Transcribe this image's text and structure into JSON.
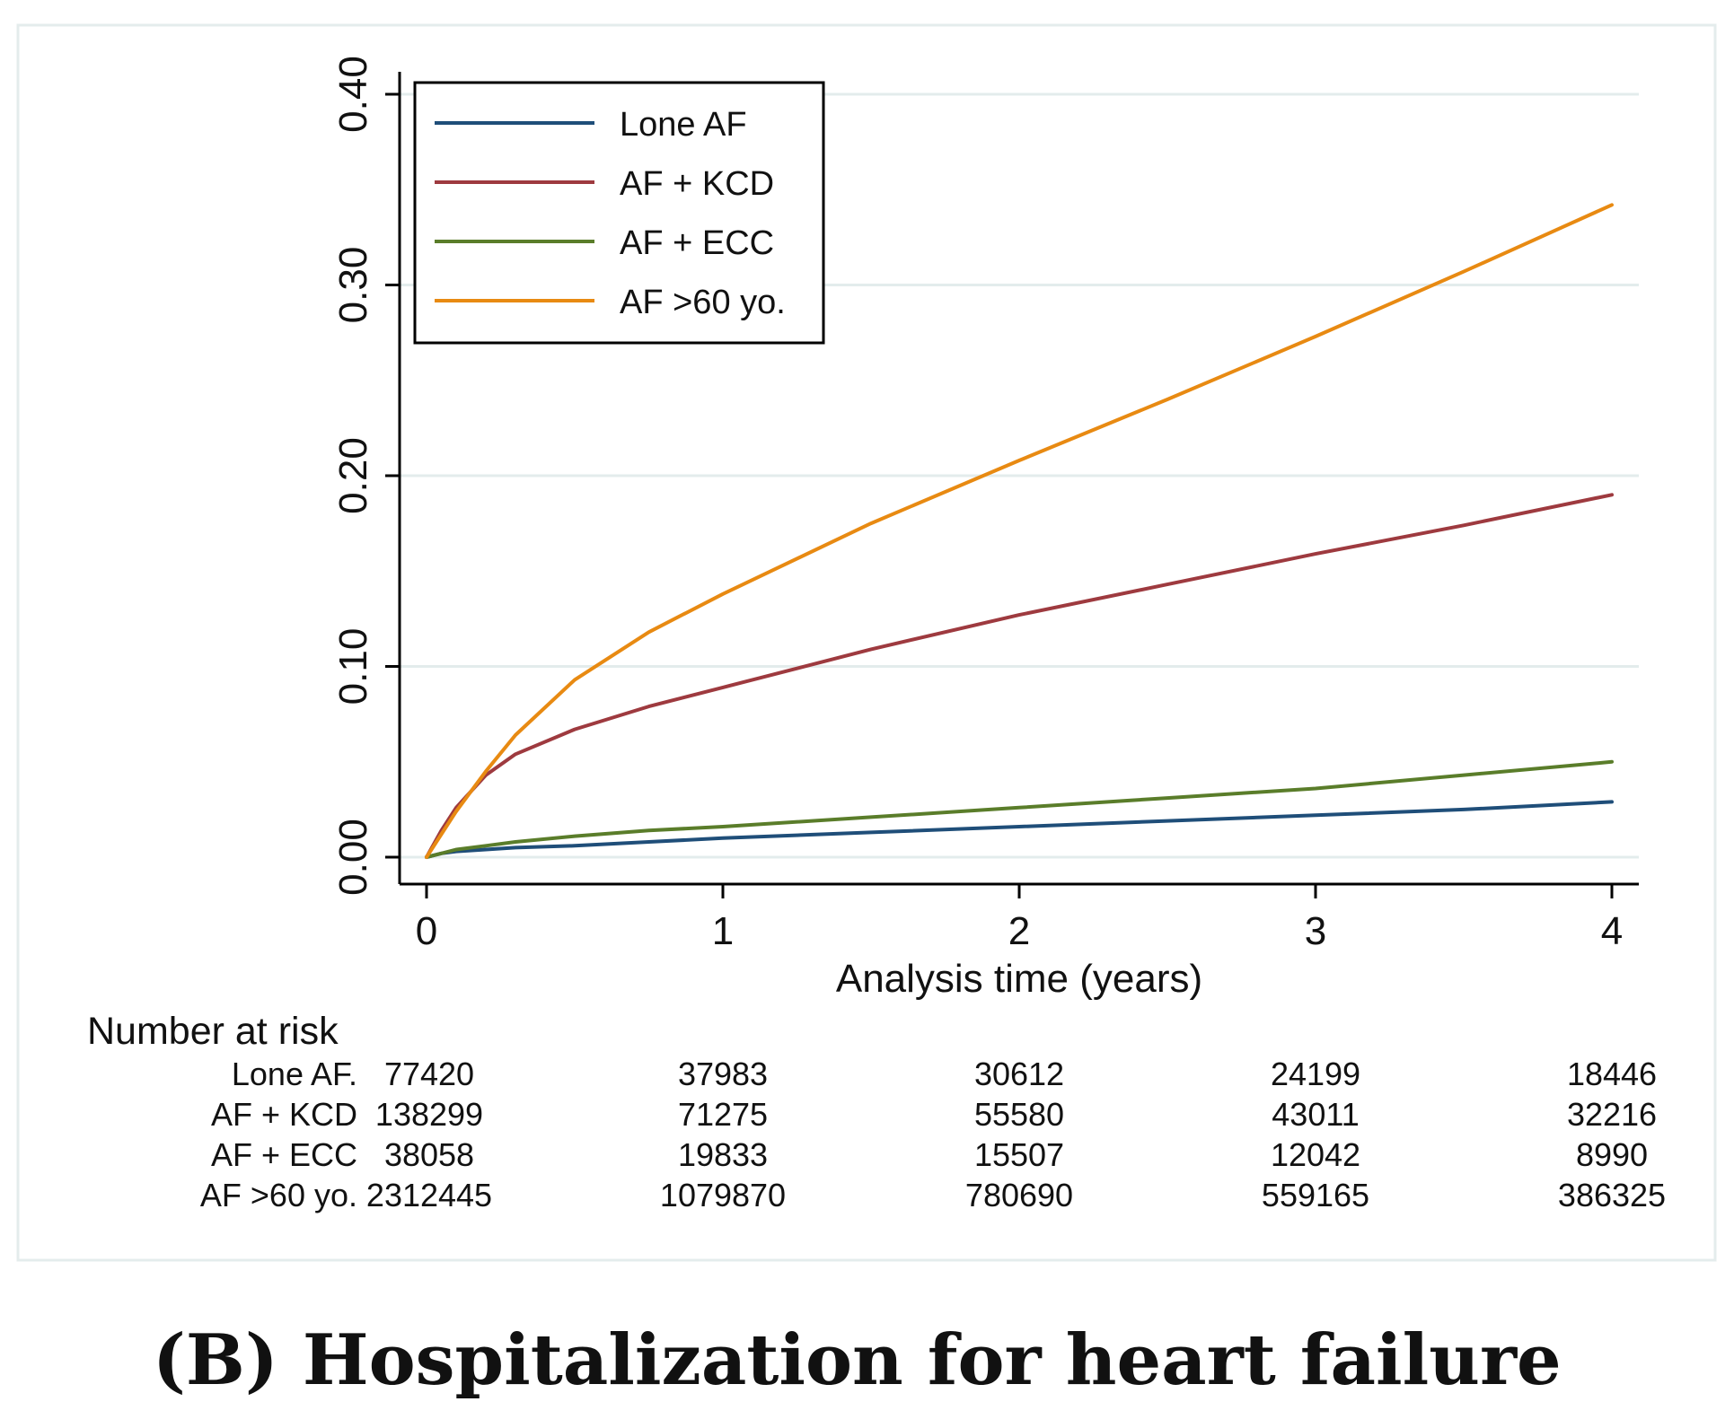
{
  "caption": "(B) Hospitalization for heart failure",
  "chart_data": {
    "type": "line",
    "title": "",
    "xlabel": "Analysis time (years)",
    "ylabel": "",
    "xlim": [
      0,
      4
    ],
    "ylim": [
      0,
      0.4
    ],
    "xticks": [
      0,
      1,
      2,
      3,
      4
    ],
    "xtick_labels": [
      "0",
      "1",
      "2",
      "3",
      "4"
    ],
    "yticks": [
      0,
      0.1,
      0.2,
      0.3,
      0.4
    ],
    "ytick_labels": [
      "0.00",
      "0.10",
      "0.20",
      "0.30",
      "0.40"
    ],
    "grid": true,
    "legend_position": "top-left",
    "x": [
      0,
      0.05,
      0.1,
      0.2,
      0.3,
      0.5,
      0.75,
      1,
      1.5,
      2,
      2.5,
      3,
      3.5,
      4
    ],
    "series": [
      {
        "name": "Lone AF",
        "color": "#1f4e79",
        "values": [
          0,
          0.002,
          0.003,
          0.004,
          0.005,
          0.006,
          0.008,
          0.01,
          0.013,
          0.016,
          0.019,
          0.022,
          0.025,
          0.029
        ]
      },
      {
        "name": "AF + KCD",
        "color": "#9e3a3f",
        "values": [
          0,
          0.014,
          0.026,
          0.043,
          0.054,
          0.067,
          0.079,
          0.089,
          0.109,
          0.127,
          0.143,
          0.159,
          0.174,
          0.19
        ]
      },
      {
        "name": "AF + ECC",
        "color": "#5a7d2a",
        "values": [
          0,
          0.002,
          0.004,
          0.006,
          0.008,
          0.011,
          0.014,
          0.016,
          0.021,
          0.026,
          0.031,
          0.036,
          0.043,
          0.05
        ]
      },
      {
        "name": "AF >60 yo.",
        "color": "#e88a12",
        "values": [
          0,
          0.012,
          0.024,
          0.045,
          0.064,
          0.093,
          0.118,
          0.138,
          0.175,
          0.208,
          0.24,
          0.273,
          0.307,
          0.342
        ]
      }
    ],
    "risk_table": {
      "title": "Number at risk",
      "rows": [
        {
          "label": "Lone AF.",
          "counts": [
            "77420",
            "37983",
            "30612",
            "24199",
            "18446"
          ]
        },
        {
          "label": "AF + KCD",
          "counts": [
            "138299",
            "71275",
            "55580",
            "43011",
            "32216"
          ]
        },
        {
          "label": "AF + ECC",
          "counts": [
            "38058",
            "19833",
            "15507",
            "12042",
            "8990"
          ]
        },
        {
          "label": "AF >60 yo.",
          "counts": [
            "2312445",
            "1079870",
            "780690",
            "559165",
            "386325"
          ]
        }
      ]
    }
  }
}
